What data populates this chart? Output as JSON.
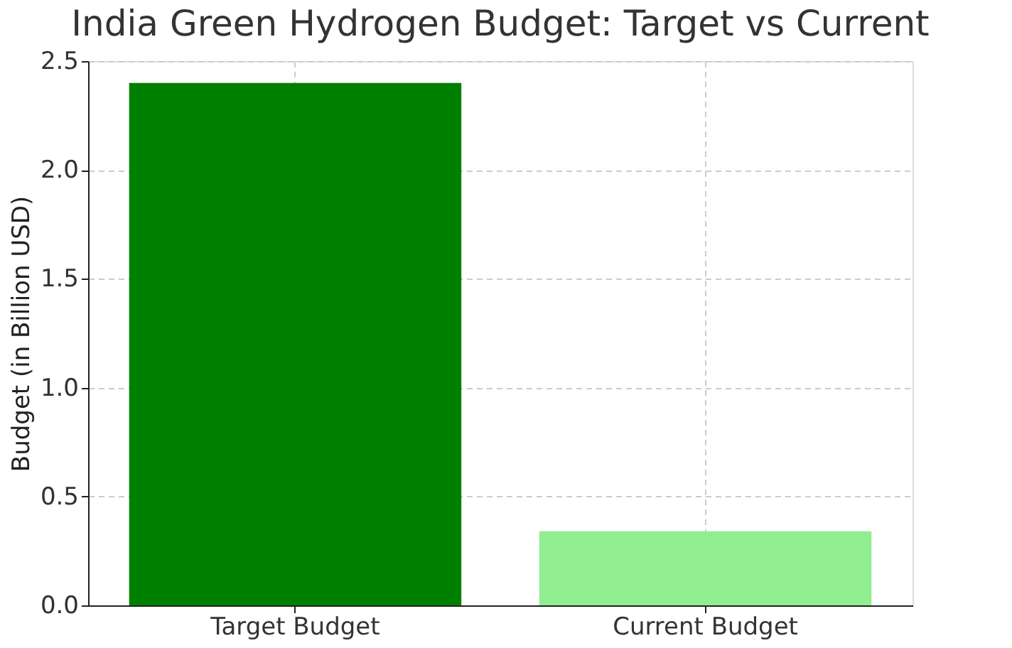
{
  "chart_data": {
    "type": "bar",
    "title": "India Green Hydrogen Budget: Target vs Current",
    "ylabel": "Budget (in Billion USD)",
    "categories": [
      "Target Budget",
      "Current Budget"
    ],
    "values": [
      2.4,
      0.34
    ],
    "colors": [
      "#008000",
      "#90ee90"
    ],
    "ylim": [
      0,
      2.5
    ],
    "yticks": [
      {
        "value": 0,
        "label": "0.0"
      },
      {
        "value": 0.5,
        "label": "0.5"
      },
      {
        "value": 1,
        "label": "1.0"
      },
      {
        "value": 1.5,
        "label": "1.5"
      },
      {
        "value": 2,
        "label": "2.0"
      },
      {
        "value": 2.5,
        "label": "2.5"
      }
    ],
    "grid": true
  }
}
